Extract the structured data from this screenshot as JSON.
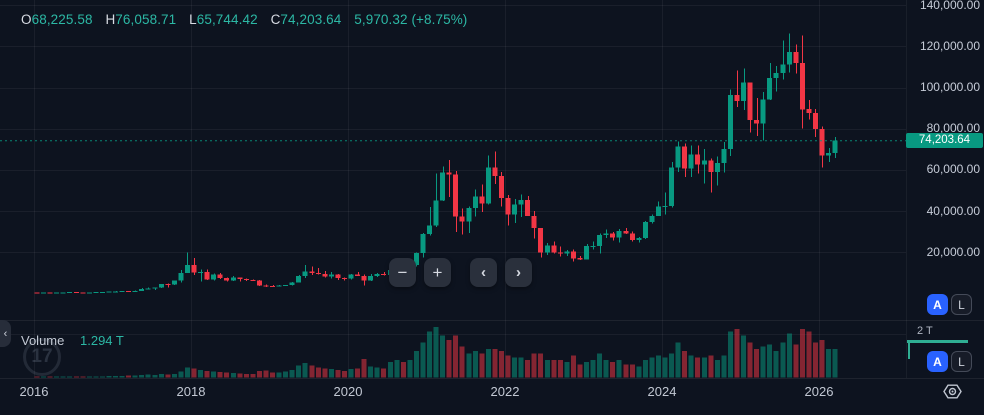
{
  "legend": {
    "items": [
      {
        "label": "O",
        "value": "68,225.58"
      },
      {
        "label": "H",
        "value": "76,058.71"
      },
      {
        "label": "L",
        "value": "65,744.42"
      },
      {
        "label": "C",
        "value": "74,203.64"
      }
    ],
    "change": "5,970.32 (+8.75%)"
  },
  "volume_legend": {
    "label": "Volume",
    "value": "1.294 T"
  },
  "price_axis": {
    "labels": [
      "140,000.00",
      "120,000.00",
      "100,000.00",
      "80,000.00",
      "60,000.00",
      "40,000.00",
      "20,000.00"
    ],
    "last_price_badge": "74,203.64"
  },
  "volume_axis": {
    "tick_label": "2 T"
  },
  "time_axis": {
    "labels": [
      "2016",
      "2018",
      "2020",
      "2022",
      "2024",
      "2026"
    ]
  },
  "toolbar": {
    "zoom_out_label": "−",
    "zoom_in_label": "+",
    "pan_left_label": "‹",
    "pan_right_label": "›"
  },
  "scale_toggles": {
    "auto_label": "A",
    "log_label": "L"
  },
  "watermark_text": "17",
  "icons": {
    "pane_collapse": "‹"
  },
  "colors": {
    "background": "#0d131f",
    "candle_up": "#089981",
    "candle_down": "#f23645",
    "badge": "#089981",
    "accent_blue": "#2962ff",
    "axis_text": "#c6ccd8",
    "value_text": "#2cb8a5"
  },
  "chart_data": {
    "type": "candlestick",
    "x_start_month": "2016-01",
    "months_per_candle": 1,
    "price_axis_ticks": [
      20000,
      40000,
      60000,
      80000,
      100000,
      120000,
      140000
    ],
    "time_axis_ticks": [
      2016,
      2018,
      2020,
      2022,
      2024,
      2026
    ],
    "volume_axis_tick_T": 2,
    "last_close": 74203.64,
    "last_volume_T": 1.294,
    "ylim": [
      0,
      145000
    ],
    "volume_ylim_T": [
      0,
      2.6
    ],
    "grid": true,
    "ohlcv": [
      [
        434,
        465,
        350,
        368,
        0.03
      ],
      [
        368,
        447,
        366,
        437,
        0.03
      ],
      [
        437,
        444,
        385,
        416,
        0.03
      ],
      [
        416,
        466,
        405,
        448,
        0.03
      ],
      [
        448,
        545,
        420,
        531,
        0.04
      ],
      [
        531,
        780,
        520,
        673,
        0.05
      ],
      [
        673,
        705,
        590,
        624,
        0.04
      ],
      [
        624,
        630,
        465,
        573,
        0.04
      ],
      [
        573,
        629,
        560,
        609,
        0.03
      ],
      [
        609,
        720,
        595,
        700,
        0.04
      ],
      [
        700,
        755,
        670,
        745,
        0.05
      ],
      [
        745,
        982,
        730,
        963,
        0.06
      ],
      [
        963,
        1180,
        740,
        970,
        0.06
      ],
      [
        970,
        1200,
        915,
        1180,
        0.06
      ],
      [
        1180,
        1350,
        890,
        1080,
        0.08
      ],
      [
        1080,
        1390,
        1060,
        1350,
        0.08
      ],
      [
        1350,
        2760,
        1340,
        2300,
        0.12
      ],
      [
        2300,
        3000,
        2100,
        2480,
        0.14
      ],
      [
        2480,
        2920,
        1830,
        2875,
        0.12
      ],
      [
        2875,
        4750,
        2650,
        4703,
        0.16
      ],
      [
        4703,
        4980,
        2970,
        4360,
        0.14
      ],
      [
        4360,
        6480,
        4100,
        6468,
        0.16
      ],
      [
        6468,
        11400,
        5400,
        9916,
        0.28
      ],
      [
        9916,
        19891,
        9916,
        13850,
        0.45
      ],
      [
        13850,
        17200,
        9000,
        10221,
        0.42
      ],
      [
        10221,
        11790,
        5900,
        10397,
        0.35
      ],
      [
        10397,
        11700,
        6600,
        6938,
        0.3
      ],
      [
        6938,
        9760,
        6430,
        9244,
        0.28
      ],
      [
        9244,
        9990,
        7070,
        7494,
        0.25
      ],
      [
        7494,
        7780,
        5780,
        6404,
        0.22
      ],
      [
        6404,
        8500,
        6100,
        7729,
        0.2
      ],
      [
        7729,
        7760,
        5860,
        7033,
        0.18
      ],
      [
        7033,
        7410,
        6200,
        6625,
        0.16
      ],
      [
        6625,
        6960,
        6200,
        6318,
        0.16
      ],
      [
        6318,
        6540,
        3650,
        4017,
        0.3
      ],
      [
        4017,
        4300,
        3150,
        3742,
        0.32
      ],
      [
        3742,
        4100,
        3350,
        3457,
        0.22
      ],
      [
        3457,
        4190,
        3330,
        3854,
        0.22
      ],
      [
        3854,
        4290,
        3660,
        4105,
        0.28
      ],
      [
        4105,
        5620,
        4050,
        5350,
        0.35
      ],
      [
        5350,
        9070,
        5330,
        8574,
        0.55
      ],
      [
        8574,
        13880,
        7480,
        10818,
        0.65
      ],
      [
        10818,
        13150,
        9080,
        10085,
        0.55
      ],
      [
        10085,
        12320,
        9320,
        9630,
        0.45
      ],
      [
        9630,
        10900,
        7700,
        8308,
        0.4
      ],
      [
        8308,
        10540,
        7300,
        9199,
        0.38
      ],
      [
        9199,
        9500,
        6520,
        7569,
        0.35
      ],
      [
        7569,
        7750,
        6430,
        7193,
        0.3
      ],
      [
        7193,
        9580,
        6850,
        9350,
        0.38
      ],
      [
        9350,
        10500,
        8520,
        8599,
        0.4
      ],
      [
        8599,
        9190,
        3850,
        6438,
        0.85
      ],
      [
        6438,
        9470,
        6150,
        8658,
        0.5
      ],
      [
        8658,
        10070,
        8100,
        9461,
        0.45
      ],
      [
        9461,
        10380,
        8830,
        9137,
        0.42
      ],
      [
        9137,
        11450,
        8900,
        11351,
        0.7
      ],
      [
        11351,
        12480,
        10550,
        11655,
        0.8
      ],
      [
        11655,
        12050,
        9820,
        10776,
        0.7
      ],
      [
        10776,
        14100,
        10380,
        13797,
        0.8
      ],
      [
        13797,
        19860,
        13200,
        19713,
        1.2
      ],
      [
        19713,
        29300,
        17580,
        29002,
        1.6
      ],
      [
        29002,
        41950,
        28130,
        33114,
        2.1
      ],
      [
        33114,
        58350,
        32320,
        45137,
        2.3
      ],
      [
        45137,
        61780,
        44950,
        58787,
        1.9
      ],
      [
        58787,
        64860,
        46930,
        57750,
        1.7
      ],
      [
        57750,
        59500,
        30000,
        37332,
        1.9
      ],
      [
        37332,
        41320,
        28800,
        35041,
        1.4
      ],
      [
        35041,
        42230,
        29300,
        41626,
        1.1
      ],
      [
        41626,
        50500,
        37330,
        47166,
        1.2
      ],
      [
        47166,
        52920,
        39600,
        43791,
        1.1
      ],
      [
        43791,
        66930,
        43280,
        61318,
        1.3
      ],
      [
        61318,
        69000,
        53260,
        57006,
        1.3
      ],
      [
        57006,
        59040,
        42330,
        46306,
        1.2
      ],
      [
        46306,
        47980,
        32950,
        38483,
        1.0
      ],
      [
        38483,
        45820,
        34320,
        43193,
        0.9
      ],
      [
        43193,
        48190,
        37160,
        45539,
        0.9
      ],
      [
        45539,
        47440,
        37580,
        37714,
        0.8
      ],
      [
        37714,
        40020,
        26700,
        31792,
        1.1
      ],
      [
        31792,
        31960,
        17600,
        19985,
        1.1
      ],
      [
        19985,
        24660,
        18780,
        23293,
        0.8
      ],
      [
        23293,
        25200,
        19520,
        20049,
        0.8
      ],
      [
        20049,
        22800,
        18130,
        19432,
        0.8
      ],
      [
        19432,
        21080,
        18190,
        20495,
        0.7
      ],
      [
        20495,
        21470,
        15480,
        17168,
        1.0
      ],
      [
        17168,
        18370,
        16260,
        16547,
        0.6
      ],
      [
        16547,
        23960,
        16490,
        23139,
        0.7
      ],
      [
        23139,
        25250,
        21430,
        23147,
        0.8
      ],
      [
        23147,
        29180,
        19550,
        28478,
        1.1
      ],
      [
        28478,
        31050,
        26940,
        29268,
        0.8
      ],
      [
        29268,
        29820,
        25800,
        27219,
        0.7
      ],
      [
        27219,
        31400,
        24800,
        30477,
        0.8
      ],
      [
        30477,
        31800,
        28860,
        29232,
        0.6
      ],
      [
        29232,
        30230,
        25350,
        25932,
        0.6
      ],
      [
        25932,
        27480,
        24900,
        26967,
        0.5
      ],
      [
        26967,
        35150,
        26540,
        34667,
        0.8
      ],
      [
        34667,
        38420,
        34100,
        37718,
        0.9
      ],
      [
        37718,
        44700,
        37610,
        42265,
        1.0
      ],
      [
        42265,
        48970,
        38500,
        42580,
        0.9
      ],
      [
        42580,
        63930,
        41880,
        61198,
        1.1
      ],
      [
        61198,
        73750,
        59000,
        71333,
        1.6
      ],
      [
        71333,
        72800,
        56500,
        60636,
        1.2
      ],
      [
        60636,
        71950,
        56550,
        67491,
        1.0
      ],
      [
        67491,
        71990,
        58400,
        62678,
        0.9
      ],
      [
        62678,
        70080,
        53500,
        64619,
        0.9
      ],
      [
        64619,
        65600,
        49000,
        58969,
        1.0
      ],
      [
        58969,
        66500,
        52550,
        63329,
        0.8
      ],
      [
        63329,
        73600,
        58900,
        70215,
        1.0
      ],
      [
        70215,
        99000,
        66800,
        96449,
        2.1
      ],
      [
        96449,
        108300,
        90500,
        93429,
        2.2
      ],
      [
        93429,
        109350,
        89160,
        102405,
        1.9
      ],
      [
        102405,
        102500,
        78250,
        84349,
        1.6
      ],
      [
        84349,
        95000,
        76600,
        82548,
        1.3
      ],
      [
        82548,
        97900,
        74430,
        94207,
        1.4
      ],
      [
        94207,
        112000,
        93900,
        104598,
        1.5
      ],
      [
        104598,
        110530,
        98200,
        107135,
        1.2
      ],
      [
        107135,
        122900,
        104000,
        111300,
        1.6
      ],
      [
        111300,
        126300,
        107300,
        117200,
        2.0
      ],
      [
        117200,
        121000,
        106800,
        112000,
        1.5
      ],
      [
        112000,
        125400,
        80200,
        89500,
        2.2
      ],
      [
        89500,
        94000,
        84500,
        87600,
        2.1
      ],
      [
        87600,
        89600,
        75900,
        79800,
        1.6
      ],
      [
        79800,
        81000,
        61100,
        67000,
        1.7
      ],
      [
        67000,
        70600,
        63900,
        68226,
        1.3
      ],
      [
        68225.58,
        76058.71,
        65744.42,
        74203.64,
        1.294
      ]
    ]
  }
}
